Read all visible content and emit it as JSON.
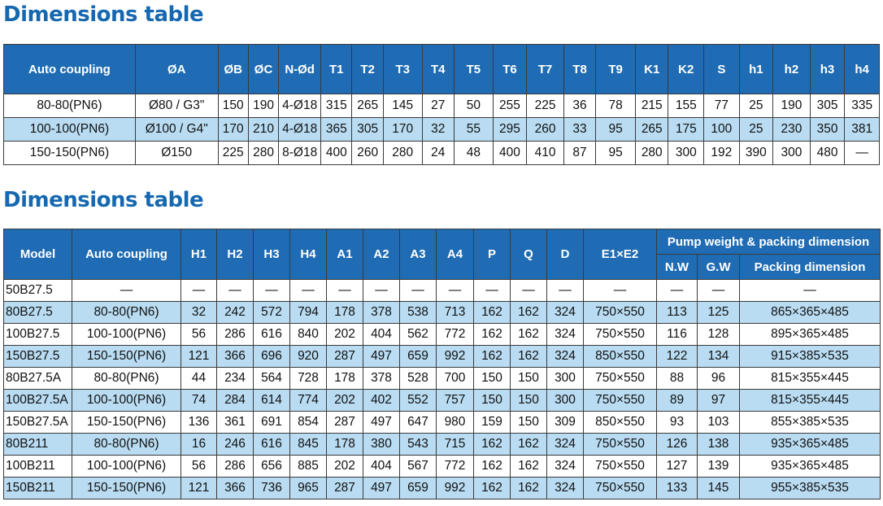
{
  "section1": {
    "title": "Dimensions table",
    "headers": [
      "Auto coupling",
      "ØA",
      "ØB",
      "ØC",
      "N-Ød",
      "T1",
      "T2",
      "T3",
      "T4",
      "T5",
      "T6",
      "T7",
      "T8",
      "T9",
      "K1",
      "K2",
      "S",
      "h1",
      "h2",
      "h3",
      "h4"
    ],
    "rows": [
      [
        "80-80(PN6)",
        "Ø80 / G3\"",
        "150",
        "190",
        "4-Ø18",
        "315",
        "265",
        "145",
        "27",
        "50",
        "255",
        "225",
        "36",
        "78",
        "215",
        "155",
        "77",
        "25",
        "190",
        "305",
        "335"
      ],
      [
        "100-100(PN6)",
        "Ø100 / G4\"",
        "170",
        "210",
        "4-Ø18",
        "365",
        "305",
        "170",
        "32",
        "55",
        "295",
        "260",
        "33",
        "95",
        "265",
        "175",
        "100",
        "25",
        "230",
        "350",
        "381"
      ],
      [
        "150-150(PN6)",
        "Ø150",
        "225",
        "280",
        "8-Ø18",
        "400",
        "260",
        "280",
        "24",
        "48",
        "400",
        "410",
        "87",
        "95",
        "280",
        "300",
        "192",
        "390",
        "300",
        "480",
        "—"
      ]
    ]
  },
  "section2": {
    "title": "Dimensions table",
    "headers_row1": [
      "Model",
      "Auto coupling",
      "H1",
      "H2",
      "H3",
      "H4",
      "A1",
      "A2",
      "A3",
      "A4",
      "P",
      "Q",
      "D",
      "E1×E2",
      "Pump weight & packing dimension"
    ],
    "headers_row2": [
      "N.W",
      "G.W",
      "Packing dimension"
    ],
    "rows": [
      [
        "50B27.5",
        "—",
        "—",
        "—",
        "—",
        "—",
        "—",
        "—",
        "—",
        "—",
        "—",
        "—",
        "—",
        "—",
        "—",
        "—",
        "—"
      ],
      [
        "80B27.5",
        "80-80(PN6)",
        "32",
        "242",
        "572",
        "794",
        "178",
        "378",
        "538",
        "713",
        "162",
        "162",
        "324",
        "750×550",
        "113",
        "125",
        "865×365×485"
      ],
      [
        "100B27.5",
        "100-100(PN6)",
        "56",
        "286",
        "616",
        "840",
        "202",
        "404",
        "562",
        "772",
        "162",
        "162",
        "324",
        "750×550",
        "116",
        "128",
        "895×365×485"
      ],
      [
        "150B27.5",
        "150-150(PN6)",
        "121",
        "366",
        "696",
        "920",
        "287",
        "497",
        "659",
        "992",
        "162",
        "162",
        "324",
        "850×550",
        "122",
        "134",
        "915×385×535"
      ],
      [
        "80B27.5A",
        "80-80(PN6)",
        "44",
        "234",
        "564",
        "728",
        "178",
        "378",
        "528",
        "700",
        "150",
        "150",
        "300",
        "750×550",
        "88",
        "96",
        "815×355×445"
      ],
      [
        "100B27.5A",
        "100-100(PN6)",
        "74",
        "284",
        "614",
        "774",
        "202",
        "402",
        "552",
        "757",
        "150",
        "150",
        "300",
        "750×550",
        "89",
        "97",
        "815×355×445"
      ],
      [
        "150B27.5A",
        "150-150(PN6)",
        "136",
        "361",
        "691",
        "854",
        "287",
        "497",
        "647",
        "980",
        "159",
        "150",
        "309",
        "850×550",
        "93",
        "103",
        "855×385×535"
      ],
      [
        "80B211",
        "80-80(PN6)",
        "16",
        "246",
        "616",
        "845",
        "178",
        "380",
        "543",
        "715",
        "162",
        "162",
        "324",
        "750×550",
        "126",
        "138",
        "935×365×485"
      ],
      [
        "100B211",
        "100-100(PN6)",
        "56",
        "286",
        "656",
        "885",
        "202",
        "404",
        "567",
        "772",
        "162",
        "162",
        "324",
        "750×550",
        "127",
        "139",
        "935×365×485"
      ],
      [
        "150B211",
        "150-150(PN6)",
        "121",
        "366",
        "736",
        "965",
        "287",
        "497",
        "659",
        "992",
        "162",
        "162",
        "324",
        "750×550",
        "133",
        "145",
        "955×385×535"
      ]
    ]
  }
}
